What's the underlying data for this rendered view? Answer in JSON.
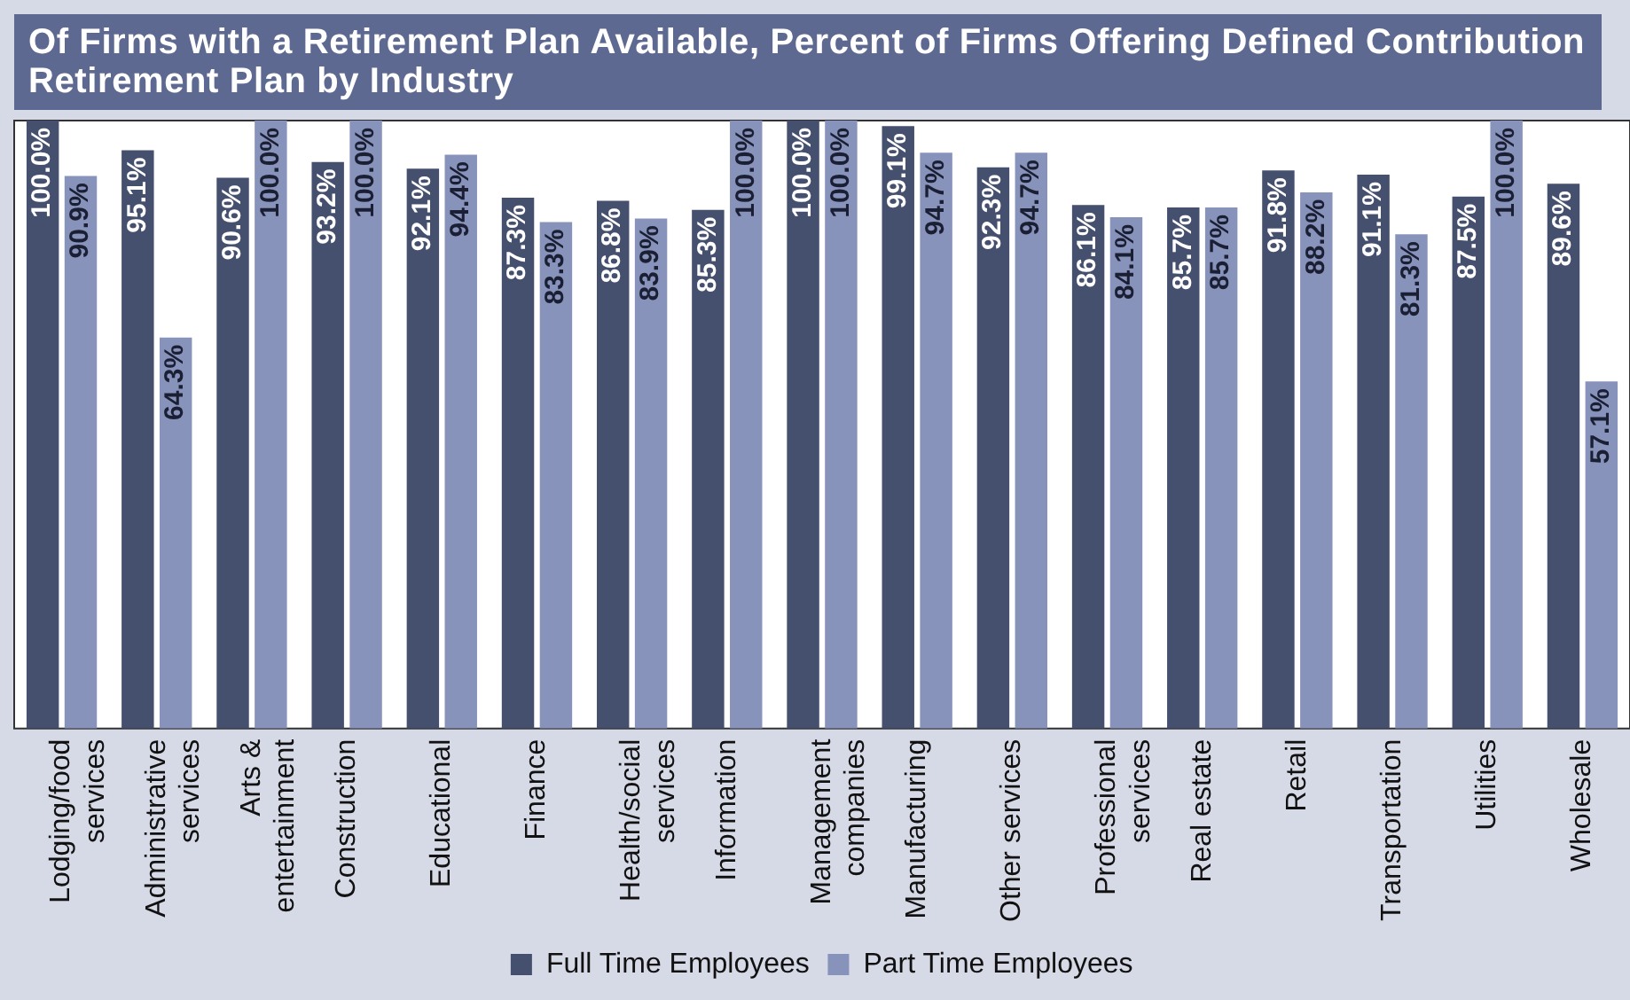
{
  "chart_data": {
    "type": "bar",
    "title": "Of Firms with a Retirement Plan Available, Percent of Firms Offering Defined Contribution Retirement Plan by Industry",
    "categories": [
      "Lodging/food services",
      "Administrative services",
      "Arts & entertainment",
      "Construction",
      "Educational",
      "Finance",
      "Health/social services",
      "Information",
      "Management companies",
      "Manufacturing",
      "Other services",
      "Professional services",
      "Real estate",
      "Retail",
      "Transportation",
      "Utilities",
      "Wholesale"
    ],
    "series": [
      {
        "name": "Full Time Employees",
        "color": "#454f6e",
        "values": [
          100.0,
          95.1,
          90.6,
          93.2,
          92.1,
          87.3,
          86.8,
          85.3,
          100.0,
          99.1,
          92.3,
          86.1,
          85.7,
          91.8,
          91.1,
          87.5,
          89.6
        ],
        "value_labels": [
          "100.0%",
          "95.1%",
          "90.6%",
          "93.2%",
          "92.1%",
          "87.3%",
          "86.8%",
          "85.3%",
          "100.0%",
          "99.1%",
          "92.3%",
          "86.1%",
          "85.7%",
          "91.8%",
          "91.1%",
          "87.5%",
          "89.6%"
        ]
      },
      {
        "name": "Part Time Employees",
        "color": "#8893bb",
        "values": [
          90.9,
          64.3,
          100.0,
          100.0,
          94.4,
          83.3,
          83.9,
          100.0,
          100.0,
          94.7,
          94.7,
          84.1,
          85.7,
          88.2,
          81.3,
          100.0,
          57.1
        ],
        "value_labels": [
          "90.9%",
          "64.3%",
          "100.0%",
          "100.0%",
          "94.4%",
          "83.3%",
          "83.9%",
          "100.0%",
          "100.0%",
          "94.7%",
          "94.7%",
          "84.1%",
          "85.7%",
          "88.2%",
          "81.3%",
          "100.0%",
          "57.1%"
        ]
      }
    ],
    "ylim": [
      0,
      100
    ],
    "tick_labels": "x",
    "grid": false,
    "legend": "bottom"
  }
}
